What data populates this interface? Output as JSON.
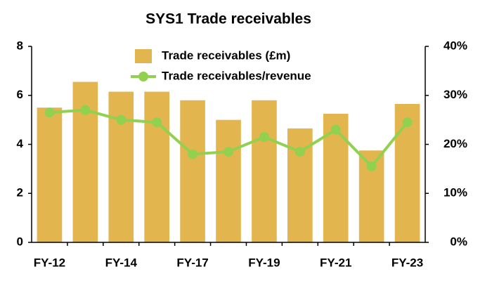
{
  "chart_data": {
    "type": "bar_line",
    "title": "SYS1 Trade receivables",
    "categories": [
      "FY-12",
      null,
      "FY-14",
      null,
      "FY-17",
      null,
      "FY-19",
      null,
      "FY-21",
      null,
      "FY-23"
    ],
    "series": [
      {
        "name": "Trade receivables (£m)",
        "type": "bar",
        "color": "#e3b54f",
        "axis": "y",
        "values": [
          5.5,
          6.55,
          6.15,
          6.15,
          5.8,
          5.0,
          5.8,
          4.65,
          5.25,
          3.75,
          5.65
        ]
      },
      {
        "name": "Trade receivables/revenue",
        "type": "line",
        "color": "#92d050",
        "axis": "y2",
        "values": [
          26.5,
          27,
          25,
          24.5,
          18,
          18.5,
          21.5,
          18.5,
          23,
          15.5,
          24.5
        ]
      }
    ],
    "ylim": [
      0,
      8
    ],
    "yticks": [
      0,
      2,
      4,
      6,
      8
    ],
    "y2lim": [
      0,
      40
    ],
    "y2ticks": [
      {
        "value": 0,
        "label": "0%"
      },
      {
        "value": 10,
        "label": "10%"
      },
      {
        "value": 20,
        "label": "20%"
      },
      {
        "value": 30,
        "label": "30%"
      },
      {
        "value": 40,
        "label": "40%"
      }
    ],
    "grid": false,
    "legend": "top"
  }
}
